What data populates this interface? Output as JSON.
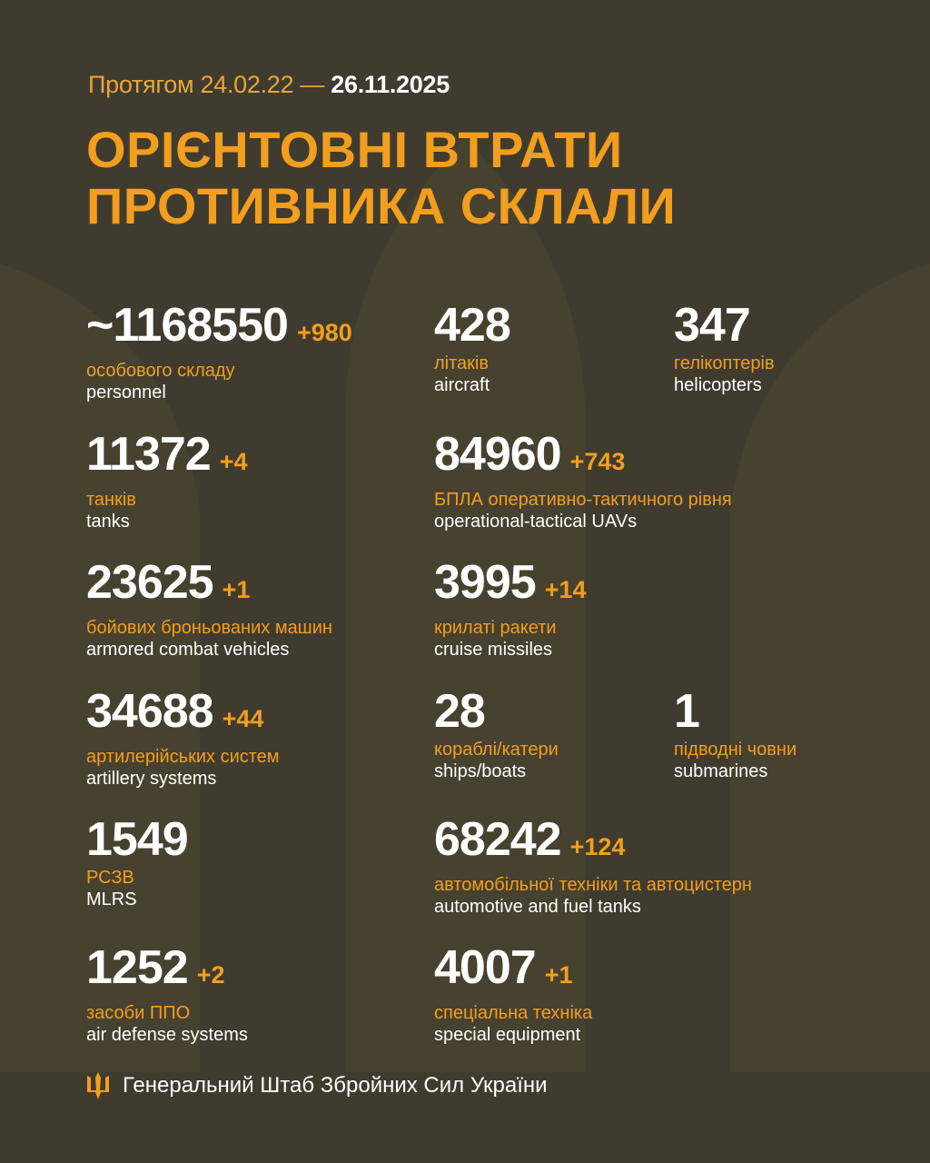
{
  "header": {
    "period_prefix": "Протягом 24.02.22 —",
    "period_end": "26.11.2025",
    "title_line1": "ОРІЄНТОВНІ ВТРАТИ",
    "title_line2": "ПРОТИВНИКА СКЛАЛИ"
  },
  "stats": [
    {
      "value": "~1168550",
      "delta": "+980",
      "ua": "особового складу",
      "en": "personnel"
    },
    {
      "value": "428",
      "delta": "",
      "ua": "літаків",
      "en": "aircraft"
    },
    {
      "value": "347",
      "delta": "",
      "ua": "гелікоптерів",
      "en": "helicopters"
    },
    {
      "value": "11372",
      "delta": "+4",
      "ua": "танків",
      "en": "tanks"
    },
    {
      "value": "84960",
      "delta": "+743",
      "ua": "БПЛА оперативно-тактичного рівня",
      "en": "operational-tactical UAVs"
    },
    {
      "value": "23625",
      "delta": "+1",
      "ua": "бойових броньованих машин",
      "en": "armored combat vehicles"
    },
    {
      "value": "3995",
      "delta": "+14",
      "ua": "крилаті ракети",
      "en": "cruise missiles"
    },
    {
      "value": "34688",
      "delta": "+44",
      "ua": "артилерійських систем",
      "en": "artillery systems"
    },
    {
      "value": "28",
      "delta": "",
      "ua": "кораблі/катери",
      "en": "ships/boats"
    },
    {
      "value": "1",
      "delta": "",
      "ua": "підводні човни",
      "en": "submarines"
    },
    {
      "value": "1549",
      "delta": "",
      "ua": "РСЗВ",
      "en": "MLRS"
    },
    {
      "value": "68242",
      "delta": "+124",
      "ua": "автомобільної техніки та автоцистерн",
      "en": "automotive and fuel tanks"
    },
    {
      "value": "1252",
      "delta": "+2",
      "ua": "засоби ППО",
      "en": "air defense systems"
    },
    {
      "value": "4007",
      "delta": "+1",
      "ua": "спеціальна техніка",
      "en": "special equipment"
    }
  ],
  "footer": {
    "text": "Генеральний Штаб Збройних Сил України",
    "icon": "trident-icon"
  },
  "colors": {
    "background": "#403b2f",
    "accent": "#f29e1e",
    "text": "#ffffff"
  }
}
